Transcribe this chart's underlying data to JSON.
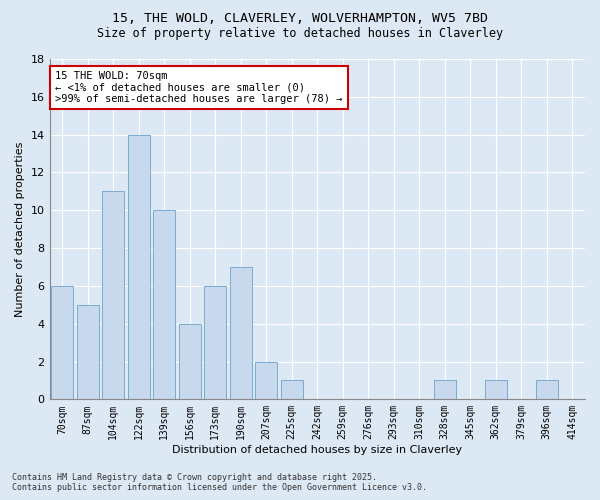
{
  "title": "15, THE WOLD, CLAVERLEY, WOLVERHAMPTON, WV5 7BD",
  "subtitle": "Size of property relative to detached houses in Claverley",
  "xlabel": "Distribution of detached houses by size in Claverley",
  "ylabel": "Number of detached properties",
  "categories": [
    "70sqm",
    "87sqm",
    "104sqm",
    "122sqm",
    "139sqm",
    "156sqm",
    "173sqm",
    "190sqm",
    "207sqm",
    "225sqm",
    "242sqm",
    "259sqm",
    "276sqm",
    "293sqm",
    "310sqm",
    "328sqm",
    "345sqm",
    "362sqm",
    "379sqm",
    "396sqm",
    "414sqm"
  ],
  "values": [
    6,
    5,
    11,
    14,
    10,
    4,
    6,
    7,
    2,
    1,
    0,
    0,
    0,
    0,
    0,
    1,
    0,
    1,
    0,
    1,
    0
  ],
  "bar_color": "#c8d9ee",
  "bar_edge_color": "#7aabcf",
  "annotation_text": "15 THE WOLD: 70sqm\n← <1% of detached houses are smaller (0)\n>99% of semi-detached houses are larger (78) →",
  "annotation_box_facecolor": "#ffffff",
  "annotation_box_edgecolor": "#cc0000",
  "ylim": [
    0,
    18
  ],
  "yticks": [
    0,
    2,
    4,
    6,
    8,
    10,
    12,
    14,
    16,
    18
  ],
  "background_color": "#dde8f5",
  "grid_color": "#ffffff",
  "footer_line1": "Contains HM Land Registry data © Crown copyright and database right 2025.",
  "footer_line2": "Contains public sector information licensed under the Open Government Licence v3.0."
}
